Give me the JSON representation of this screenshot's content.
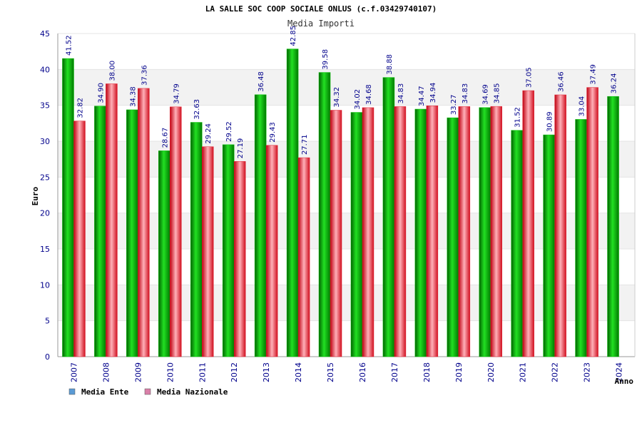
{
  "colors": {
    "series_ente": "#00c000",
    "series_nazionale": "#e02030",
    "legend_ente": "#5b9bd5",
    "legend_nazionale": "#d97fa8",
    "band": "#f2f2f2",
    "axis": "#999999",
    "tick_text": "#00008b"
  },
  "chart_data": {
    "type": "bar",
    "title": "LA SALLE SOC COOP SOCIALE ONLUS (c.f.03429740107)",
    "subtitle": "Media Importi",
    "xlabel": "Anno",
    "ylabel": "Euro",
    "ylim": [
      0,
      45
    ],
    "yticks": [
      "0",
      "5",
      "10",
      "15",
      "20",
      "25",
      "30",
      "35",
      "40",
      "45"
    ],
    "grid": "alternating horizontal bands",
    "legend_position": "bottom-left",
    "categories": [
      "2007",
      "2008",
      "2009",
      "2010",
      "2011",
      "2012",
      "2013",
      "2014",
      "2015",
      "2016",
      "2017",
      "2018",
      "2019",
      "2020",
      "2021",
      "2022",
      "2023",
      "2024"
    ],
    "series": [
      {
        "name": "Media Ente",
        "values": [
          41.52,
          34.9,
          34.38,
          28.67,
          32.63,
          29.52,
          36.48,
          42.85,
          39.58,
          34.02,
          38.88,
          34.47,
          33.27,
          34.69,
          31.52,
          30.89,
          33.04,
          36.24
        ],
        "labels": [
          "41.52",
          "34.90",
          "34.38",
          "28.67",
          "32.63",
          "29.52",
          "36.48",
          "42.85",
          "39.58",
          "34.02",
          "38.88",
          "34.47",
          "33.27",
          "34.69",
          "31.52",
          "30.89",
          "33.04",
          "36.24"
        ]
      },
      {
        "name": "Media Nazionale",
        "values": [
          32.82,
          38.0,
          37.36,
          34.79,
          29.24,
          27.19,
          29.43,
          27.71,
          34.32,
          34.68,
          34.83,
          34.94,
          34.83,
          34.85,
          37.05,
          36.46,
          37.49,
          null
        ],
        "labels": [
          "32.82",
          "38.00",
          "37.36",
          "34.79",
          "29.24",
          "27.19",
          "29.43",
          "27.71",
          "34.32",
          "34.68",
          "34.83",
          "34.94",
          "34.83",
          "34.85",
          "37.05",
          "36.46",
          "37.49",
          ""
        ]
      }
    ]
  }
}
